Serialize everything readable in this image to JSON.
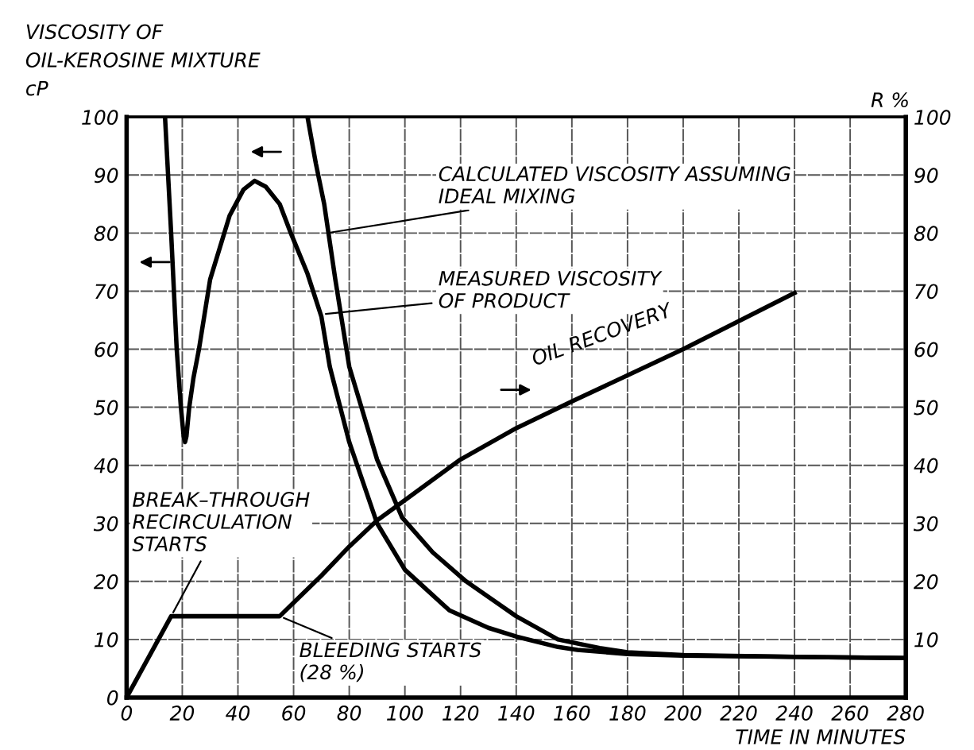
{
  "chart_data": {
    "type": "line",
    "xlabel": "TIME IN MINUTES",
    "ylabel": "VISCOSITY OF\nOIL-KEROSINE MIXTURE\ncP",
    "y2label": "R %",
    "xlim": [
      0,
      280
    ],
    "xticks": [
      0,
      20,
      40,
      60,
      80,
      100,
      120,
      140,
      160,
      180,
      200,
      220,
      240,
      260,
      280
    ],
    "ylim": [
      0,
      100
    ],
    "yticks": [
      0,
      10,
      20,
      30,
      40,
      50,
      60,
      70,
      80,
      90,
      100
    ],
    "y2lim": [
      0,
      100
    ],
    "y2ticks": [
      10,
      20,
      30,
      40,
      50,
      60,
      70,
      80,
      90,
      100
    ],
    "grid": true,
    "marker": "none",
    "line_style": "solid",
    "series": [
      {
        "color": "#000000",
        "x": [
          13.8,
          16,
          18,
          19.5,
          20.5,
          21,
          21.5,
          22.5,
          24,
          26,
          30,
          37,
          42,
          46,
          50,
          55,
          59,
          65,
          70,
          73,
          80,
          90,
          100,
          116,
          130,
          140,
          155,
          162,
          180,
          200,
          240,
          280
        ],
        "values": [
          100,
          80,
          60,
          50,
          45,
          44,
          45,
          50,
          55,
          60,
          72,
          83,
          87.5,
          89,
          88,
          85,
          80,
          73,
          65.6,
          57,
          44,
          30,
          22,
          15,
          12,
          10.5,
          8.7,
          8.2,
          7.5,
          7.2,
          7,
          6.8
        ]
      },
      {
        "color": "#000000",
        "x": [
          65,
          68,
          71,
          75,
          80,
          90,
          99,
          110,
          122,
          140,
          155,
          170,
          180,
          200,
          240,
          280
        ],
        "values": [
          100,
          92,
          85,
          72,
          57,
          41,
          31,
          25,
          20,
          14,
          10,
          8.5,
          7.8,
          7.3,
          7,
          6.8
        ]
      },
      {
        "color": "#000000",
        "axis": "y2",
        "x": [
          0,
          16,
          55,
          70,
          80,
          90,
          100,
          120,
          140,
          160,
          200,
          240
        ],
        "values": [
          0,
          14,
          14,
          21,
          26,
          30.5,
          34,
          41,
          46.4,
          51,
          60,
          69.7
        ]
      }
    ],
    "annotations": [
      {
        "text": "CALCULATED VISCOSITY ASSUMING\nIDEAL MIXING",
        "x": 72,
        "y": 80
      },
      {
        "text": "MEASURED VISCOSITY\nOF PRODUCT",
        "x": 70,
        "y": 66
      },
      {
        "text": "OIL RECOVERY",
        "x": 150,
        "y": 49
      },
      {
        "text": "BREAK–THROUGH\nRECIRCULATION\nSTARTS",
        "x": 16,
        "y": 14
      },
      {
        "text": "BLEEDING STARTS\n(28 %)",
        "x": 55,
        "y": 14
      }
    ]
  }
}
